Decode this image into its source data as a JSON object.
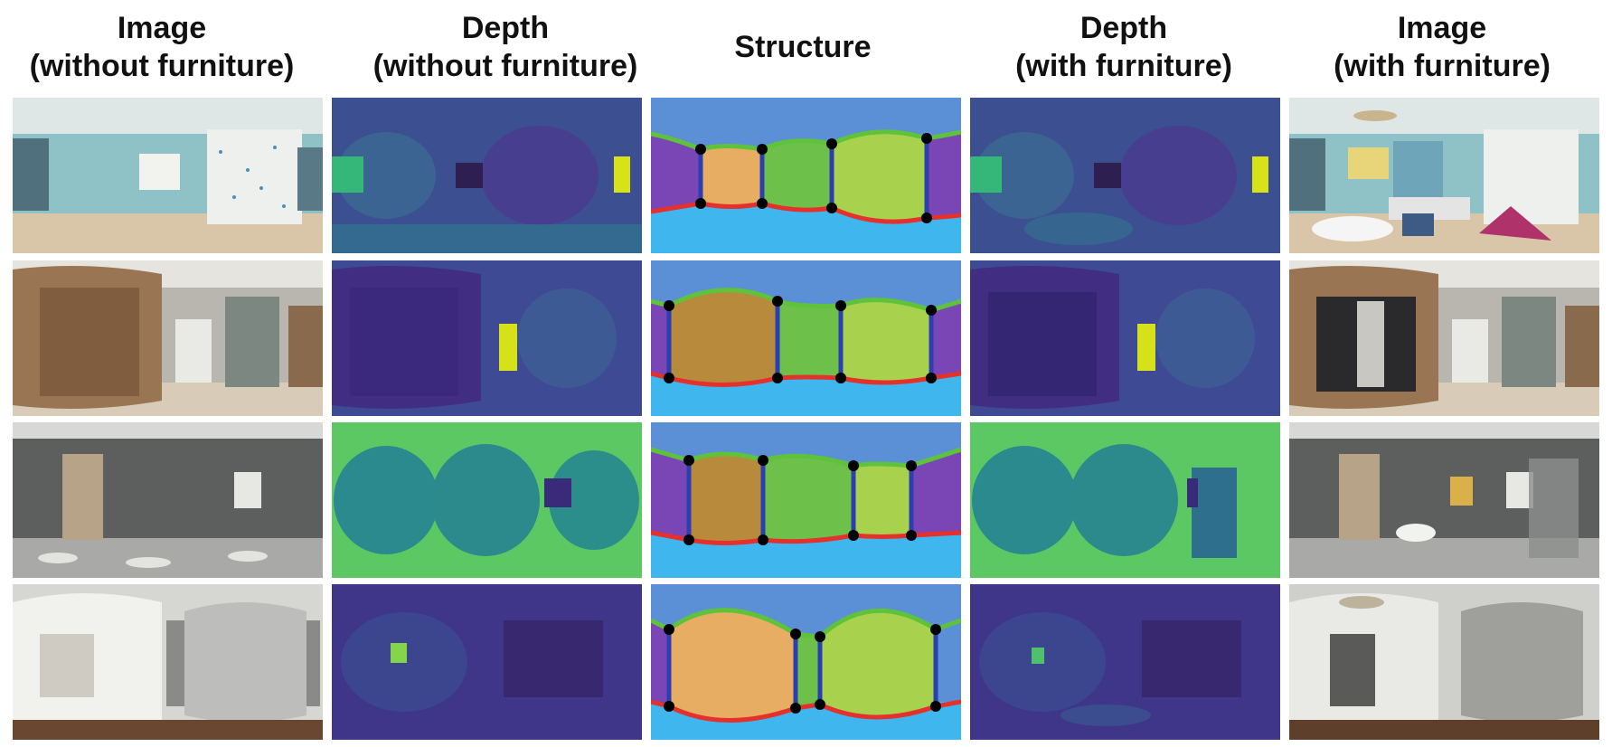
{
  "headers": [
    {
      "line1": "Image",
      "line2": "(without furniture)"
    },
    {
      "line1": "Depth",
      "line2": "(without furniture)"
    },
    {
      "line1": "Structure",
      "line2": ""
    },
    {
      "line1": "Depth",
      "line2": "(with furniture)"
    },
    {
      "line1": "Image",
      "line2": "(with furniture)"
    }
  ],
  "colors": {
    "ceiling": "#5b8fd6",
    "floor": "#3fb7ee",
    "wall_orange": "#e7ad62",
    "wall_green": "#6dc14b",
    "wall_lightgreen": "#a8d24e",
    "wall_purple": "#7a45b5",
    "wall_brown": "#b88a3c",
    "corner_blue": "#2b3fb0",
    "ceiling_line": "#5ec33a",
    "floor_line": "#e5302c",
    "keypoint": "#000000",
    "depth_dark": "#3b2f86",
    "depth_mid": "#2a8a8e",
    "depth_bright": "#f3e321"
  }
}
